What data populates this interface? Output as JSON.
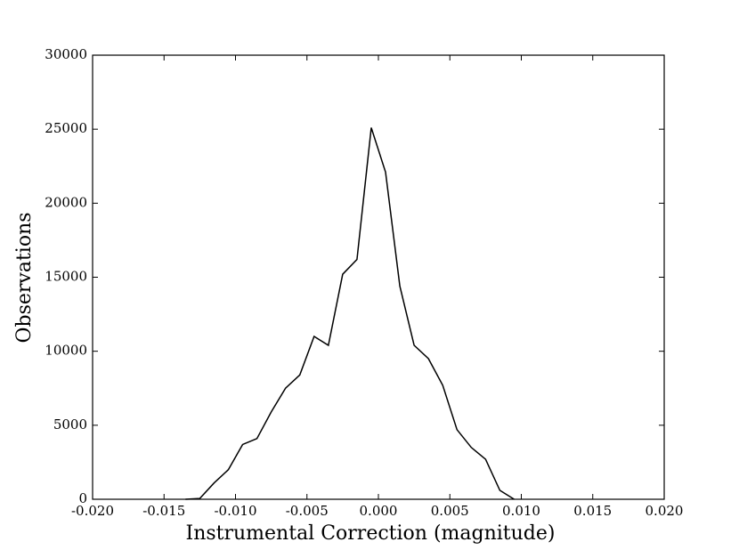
{
  "chart_data": {
    "type": "line",
    "xlabel": "Instrumental Correction (magnitude)",
    "ylabel": "Observations",
    "x": [
      -0.0135,
      -0.0125,
      -0.0115,
      -0.0105,
      -0.0095,
      -0.0085,
      -0.0075,
      -0.0065,
      -0.0055,
      -0.0045,
      -0.0035,
      -0.0025,
      -0.0015,
      -0.0005,
      0.0005,
      0.0015,
      0.0025,
      0.0035,
      0.0045,
      0.0055,
      0.0065,
      0.0075,
      0.0085,
      0.0095
    ],
    "values": [
      0,
      50,
      1100,
      2000,
      3700,
      4100,
      5900,
      7500,
      8400,
      11000,
      10400,
      15200,
      16200,
      25100,
      22100,
      14400,
      10400,
      9500,
      7700,
      4700,
      3500,
      2700,
      600,
      0
    ],
    "color": "#000000",
    "xlim": [
      -0.02,
      0.02
    ],
    "xticks": [
      {
        "value": -0.02,
        "label": "-0.020"
      },
      {
        "value": -0.015,
        "label": "-0.015"
      },
      {
        "value": -0.01,
        "label": "-0.010"
      },
      {
        "value": -0.005,
        "label": "-0.005"
      },
      {
        "value": 0,
        "label": "0.000"
      },
      {
        "value": 0.005,
        "label": "0.005"
      },
      {
        "value": 0.01,
        "label": "0.010"
      },
      {
        "value": 0.015,
        "label": "0.015"
      },
      {
        "value": 0.02,
        "label": "0.020"
      }
    ],
    "ylim": [
      0,
      30000
    ],
    "yticks": [
      0,
      5000,
      10000,
      15000,
      20000,
      25000,
      30000
    ]
  }
}
